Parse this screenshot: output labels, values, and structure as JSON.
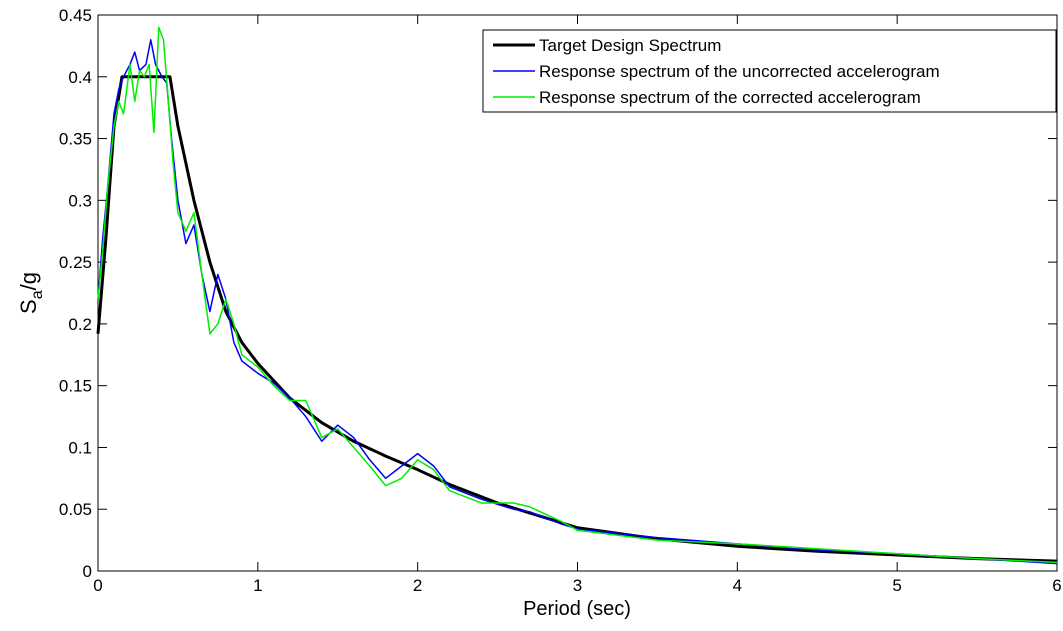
{
  "chart_data": {
    "type": "line",
    "xlabel": "Period (sec)",
    "ylabel": {
      "main": "S",
      "sub": "a",
      "rest": "/g"
    },
    "xlim": [
      0,
      6
    ],
    "xticks": [
      0,
      1,
      2,
      3,
      4,
      5,
      6
    ],
    "ylim": [
      0,
      0.45
    ],
    "yticks": [
      0,
      0.05,
      0.1,
      0.15,
      0.2,
      0.25,
      0.3,
      0.35,
      0.4,
      0.45
    ],
    "legend": "upper right",
    "series": [
      {
        "name": "Target Design Spectrum",
        "color": "#000000",
        "width": 3,
        "x": [
          0,
          0.05,
          0.1,
          0.15,
          0.45,
          0.5,
          0.6,
          0.7,
          0.8,
          0.9,
          1,
          1.2,
          1.4,
          1.6,
          1.8,
          2,
          2.2,
          2.5,
          2.8,
          3,
          3.5,
          4,
          4.5,
          5,
          5.5,
          6
        ],
        "values": [
          0.192,
          0.27,
          0.36,
          0.4,
          0.4,
          0.36,
          0.3,
          0.25,
          0.21,
          0.185,
          0.168,
          0.14,
          0.12,
          0.105,
          0.093,
          0.082,
          0.07,
          0.055,
          0.043,
          0.035,
          0.026,
          0.02,
          0.016,
          0.013,
          0.01,
          0.008
        ]
      },
      {
        "name": "Response spectrum of the uncorrected accelerogram",
        "color": "#0000ff",
        "width": 1.5,
        "x": [
          0,
          0.03,
          0.06,
          0.1,
          0.13,
          0.16,
          0.2,
          0.23,
          0.26,
          0.3,
          0.33,
          0.36,
          0.4,
          0.43,
          0.46,
          0.5,
          0.55,
          0.6,
          0.65,
          0.7,
          0.75,
          0.8,
          0.85,
          0.9,
          1,
          1.1,
          1.2,
          1.3,
          1.4,
          1.5,
          1.6,
          1.7,
          1.8,
          1.9,
          2,
          2.1,
          2.2,
          2.4,
          2.6,
          2.7,
          2.9,
          3,
          3.5,
          4,
          4.5,
          5,
          5.5,
          6
        ],
        "values": [
          0.22,
          0.27,
          0.31,
          0.37,
          0.39,
          0.4,
          0.41,
          0.42,
          0.405,
          0.41,
          0.43,
          0.41,
          0.4,
          0.395,
          0.35,
          0.3,
          0.265,
          0.28,
          0.24,
          0.21,
          0.24,
          0.22,
          0.185,
          0.17,
          0.16,
          0.152,
          0.14,
          0.125,
          0.105,
          0.118,
          0.108,
          0.09,
          0.075,
          0.085,
          0.095,
          0.085,
          0.068,
          0.058,
          0.05,
          0.048,
          0.038,
          0.034,
          0.027,
          0.022,
          0.017,
          0.014,
          0.01,
          0.006
        ]
      },
      {
        "name": "Response spectrum of the corrected accelerogram",
        "color": "#00ee00",
        "width": 1.5,
        "x": [
          0,
          0.03,
          0.06,
          0.1,
          0.13,
          0.16,
          0.2,
          0.23,
          0.26,
          0.29,
          0.32,
          0.35,
          0.38,
          0.41,
          0.44,
          0.47,
          0.5,
          0.55,
          0.6,
          0.65,
          0.7,
          0.75,
          0.8,
          0.85,
          0.9,
          1,
          1.1,
          1.2,
          1.3,
          1.4,
          1.5,
          1.6,
          1.7,
          1.8,
          1.9,
          2,
          2.1,
          2.2,
          2.4,
          2.6,
          2.7,
          2.9,
          3,
          3.5,
          4,
          4.5,
          5,
          5.5,
          6
        ],
        "values": [
          0.22,
          0.26,
          0.31,
          0.36,
          0.38,
          0.37,
          0.41,
          0.38,
          0.405,
          0.4,
          0.41,
          0.355,
          0.44,
          0.43,
          0.38,
          0.33,
          0.29,
          0.275,
          0.29,
          0.24,
          0.192,
          0.2,
          0.22,
          0.2,
          0.175,
          0.165,
          0.15,
          0.138,
          0.138,
          0.108,
          0.115,
          0.1,
          0.085,
          0.069,
          0.075,
          0.09,
          0.082,
          0.065,
          0.055,
          0.055,
          0.052,
          0.04,
          0.033,
          0.025,
          0.022,
          0.018,
          0.014,
          0.01,
          0.007
        ]
      }
    ]
  }
}
